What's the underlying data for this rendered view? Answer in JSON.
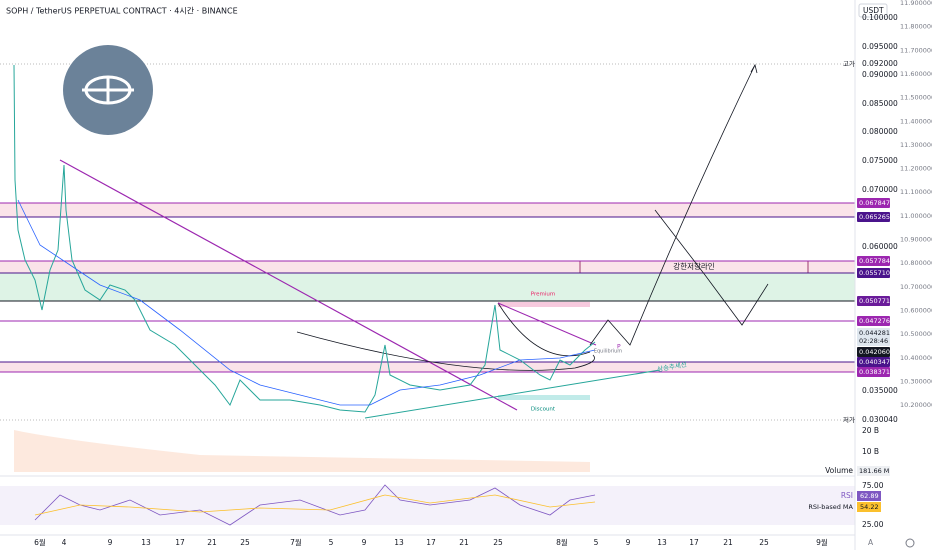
{
  "header": {
    "title": "SOPH / TetherUS PERPETUAL CONTRACT · 4시간 · BINANCE",
    "currency": "USDT"
  },
  "price_axis": {
    "labels": [
      "0.100000",
      "0.095000",
      "0.090000",
      "0.085000",
      "0.080000",
      "0.075000",
      "0.070000",
      "0.060000",
      "0.035000"
    ],
    "secondary_labels": [
      "11.900000",
      "11.800000",
      "11.700000",
      "11.600000",
      "11.500000",
      "11.400000",
      "11.300000",
      "11.200000",
      "11.100000",
      "11.000000",
      "10.900000",
      "10.800000",
      "10.700000",
      "10.600000",
      "10.500000",
      "10.400000",
      "10.300000",
      "10.200000"
    ]
  },
  "high": {
    "label": "고가",
    "value": "0.092000"
  },
  "low": {
    "label": "저가",
    "value": "0.030040"
  },
  "tags": [
    "0.067847",
    "0.065265",
    "0.057784",
    "0.055710",
    "0.050771",
    "0.047276",
    "0.044281",
    "02:28:46",
    "0.042060",
    "0.040347",
    "0.038371"
  ],
  "volume_pane": {
    "ticks": [
      "20 B",
      "10 B"
    ],
    "label": "Volume",
    "value": "181.66 M"
  },
  "rsi_pane": {
    "ticks": [
      "75.00",
      "25.00"
    ],
    "rsi_label": "RSI",
    "rsi_value": "62.89",
    "ma_label": "RSI-based MA",
    "ma_value": "54.22"
  },
  "time_axis": [
    "6월",
    "4",
    "9",
    "13",
    "17",
    "21",
    "25",
    "7월",
    "5",
    "9",
    "13",
    "17",
    "21",
    "25",
    "8월",
    "5",
    "9",
    "13",
    "17",
    "21",
    "25",
    "9월"
  ],
  "annotations": {
    "resistance": "강한저항라인",
    "premium": "Premium",
    "equilibrium": "Equilibrium",
    "discount": "Discount",
    "trendline": "상승추세선",
    "p": "P"
  },
  "footer_mode": "A"
}
